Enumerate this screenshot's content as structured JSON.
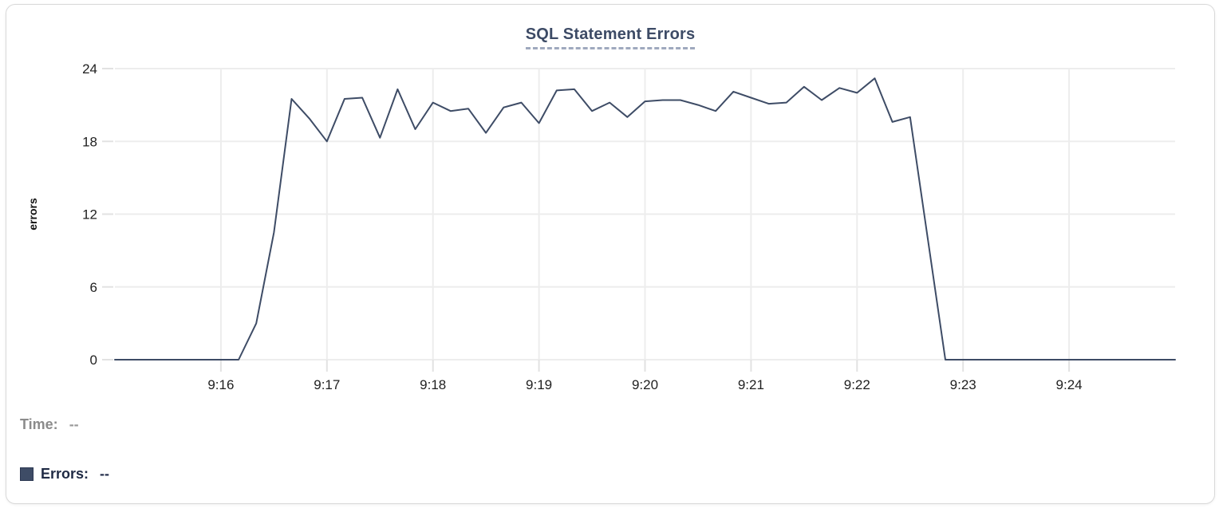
{
  "legend": {
    "time_label": "Time:",
    "time_value": "--",
    "errors_label": "Errors:",
    "errors_value": "--"
  },
  "colors": {
    "series": "#3e4c66",
    "title": "#3d4b66",
    "title_underline": "#9fa9be",
    "gridline": "#ededed",
    "tick_mark": "#e2e2e2",
    "tick_label": "#1f1f1f",
    "legend_time": "#8b8b8b",
    "legend_errors": "#1f2a44",
    "card_border": "#d9d9d9"
  },
  "chart_data": {
    "type": "line",
    "title": "SQL Statement Errors",
    "xlabel": "",
    "ylabel": "errors",
    "ylim": [
      0,
      24
    ],
    "y_ticks": [
      0,
      6,
      12,
      18,
      24
    ],
    "x_range": [
      "9:15:00",
      "9:25:00"
    ],
    "x_ticks": [
      "9:16",
      "9:17",
      "9:18",
      "9:19",
      "9:20",
      "9:21",
      "9:22",
      "9:23",
      "9:24"
    ],
    "grid": true,
    "legend_position": "bottom-left",
    "series": [
      {
        "name": "Errors",
        "color": "#3e4c66",
        "x_times": [
          "9:15:00",
          "9:15:10",
          "9:15:20",
          "9:15:30",
          "9:15:40",
          "9:15:50",
          "9:16:00",
          "9:16:10",
          "9:16:20",
          "9:16:30",
          "9:16:40",
          "9:16:50",
          "9:17:00",
          "9:17:10",
          "9:17:20",
          "9:17:30",
          "9:17:40",
          "9:17:50",
          "9:18:00",
          "9:18:10",
          "9:18:20",
          "9:18:30",
          "9:18:40",
          "9:18:50",
          "9:19:00",
          "9:19:10",
          "9:19:20",
          "9:19:30",
          "9:19:40",
          "9:19:50",
          "9:20:00",
          "9:20:10",
          "9:20:20",
          "9:20:30",
          "9:20:40",
          "9:20:50",
          "9:21:00",
          "9:21:10",
          "9:21:20",
          "9:21:30",
          "9:21:40",
          "9:21:50",
          "9:22:00",
          "9:22:10",
          "9:22:20",
          "9:22:30",
          "9:22:40",
          "9:22:50",
          "9:23:00",
          "9:23:10",
          "9:23:20",
          "9:23:30",
          "9:23:40",
          "9:23:50",
          "9:24:00",
          "9:24:10",
          "9:24:20",
          "9:24:30",
          "9:24:40",
          "9:24:50",
          "9:25:00"
        ],
        "values": [
          0,
          0,
          0,
          0,
          0,
          0,
          0,
          0,
          3,
          10.5,
          21.5,
          19.9,
          18,
          21.5,
          21.6,
          18.3,
          22.3,
          19,
          21.2,
          20.5,
          20.7,
          18.7,
          20.8,
          21.2,
          19.5,
          22.2,
          22.3,
          20.5,
          21.2,
          20,
          21.3,
          21.4,
          21.4,
          21,
          20.5,
          22.1,
          21.6,
          21.1,
          21.2,
          22.5,
          21.4,
          22.4,
          22,
          23.2,
          19.6,
          20,
          10,
          0,
          0,
          0,
          0,
          0,
          0,
          0,
          0,
          0,
          0,
          0,
          0,
          0,
          0
        ]
      }
    ]
  }
}
